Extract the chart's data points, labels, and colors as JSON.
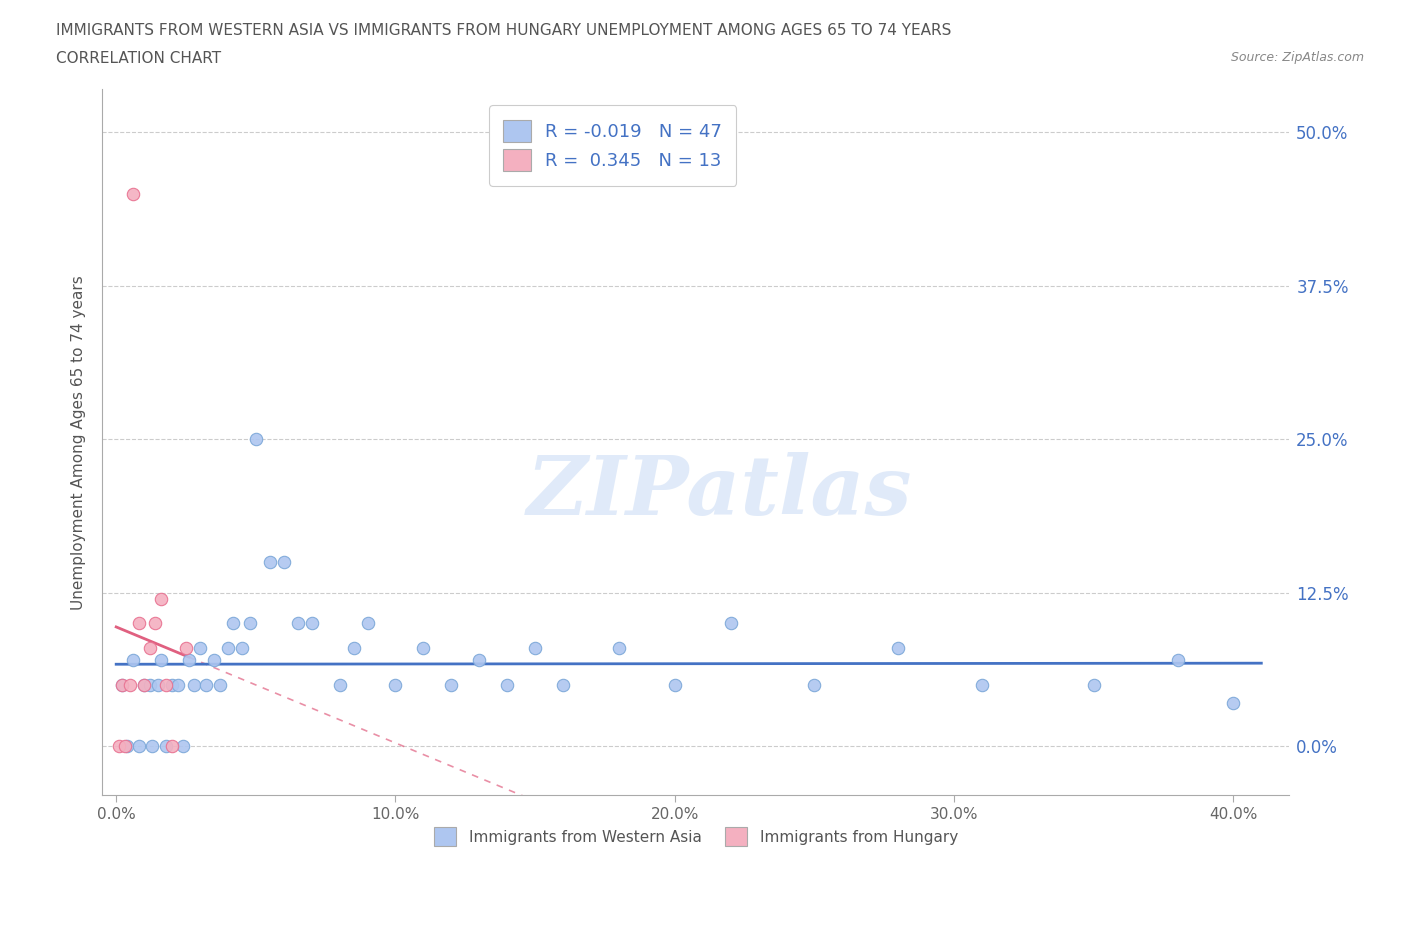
{
  "title_line1": "IMMIGRANTS FROM WESTERN ASIA VS IMMIGRANTS FROM HUNGARY UNEMPLOYMENT AMONG AGES 65 TO 74 YEARS",
  "title_line2": "CORRELATION CHART",
  "source_text": "Source: ZipAtlas.com",
  "ylabel": "Unemployment Among Ages 65 to 74 years",
  "x_ticks": [
    "0.0%",
    "10.0%",
    "20.0%",
    "30.0%",
    "40.0%"
  ],
  "x_tick_vals": [
    0.0,
    0.1,
    0.2,
    0.3,
    0.4
  ],
  "y_ticks": [
    "0.0%",
    "12.5%",
    "25.0%",
    "37.5%",
    "50.0%"
  ],
  "y_tick_vals": [
    0.0,
    0.125,
    0.25,
    0.375,
    0.5
  ],
  "xlim": [
    -0.005,
    0.42
  ],
  "ylim": [
    -0.04,
    0.535
  ],
  "color_western_asia": "#aec6f0",
  "color_hungary": "#f4b0c0",
  "edge_color_western_asia": "#7ba7d8",
  "edge_color_hungary": "#e87090",
  "line_color_western_asia": "#4472c4",
  "line_color_hungary": "#e06080",
  "watermark_text": "ZIPatlas",
  "background_color": "#ffffff",
  "grid_color": "#cccccc",
  "wa_x": [
    0.002,
    0.004,
    0.006,
    0.008,
    0.01,
    0.012,
    0.013,
    0.015,
    0.016,
    0.018,
    0.02,
    0.022,
    0.024,
    0.026,
    0.028,
    0.03,
    0.032,
    0.035,
    0.037,
    0.04,
    0.042,
    0.045,
    0.048,
    0.05,
    0.055,
    0.06,
    0.065,
    0.07,
    0.08,
    0.085,
    0.09,
    0.1,
    0.11,
    0.12,
    0.13,
    0.14,
    0.15,
    0.16,
    0.18,
    0.2,
    0.22,
    0.25,
    0.28,
    0.31,
    0.35,
    0.38,
    0.4
  ],
  "wa_y": [
    0.05,
    0.0,
    0.07,
    0.0,
    0.05,
    0.05,
    0.0,
    0.05,
    0.07,
    0.0,
    0.05,
    0.05,
    0.0,
    0.07,
    0.05,
    0.08,
    0.05,
    0.07,
    0.05,
    0.08,
    0.1,
    0.08,
    0.1,
    0.25,
    0.15,
    0.15,
    0.1,
    0.1,
    0.05,
    0.08,
    0.1,
    0.05,
    0.08,
    0.05,
    0.07,
    0.05,
    0.08,
    0.05,
    0.08,
    0.05,
    0.1,
    0.05,
    0.08,
    0.05,
    0.05,
    0.07,
    0.035
  ],
  "hu_x": [
    0.001,
    0.002,
    0.003,
    0.005,
    0.006,
    0.008,
    0.01,
    0.012,
    0.014,
    0.016,
    0.018,
    0.02,
    0.025
  ],
  "hu_y": [
    0.0,
    0.05,
    0.0,
    0.05,
    0.45,
    0.1,
    0.05,
    0.08,
    0.1,
    0.12,
    0.05,
    0.0,
    0.08
  ],
  "legend_label_wa": "R = -0.019   N = 47",
  "legend_label_hu": "R =  0.345   N = 13",
  "legend_items": [
    {
      "label": "Immigrants from Western Asia",
      "color": "#aec6f0"
    },
    {
      "label": "Immigrants from Hungary",
      "color": "#f4b0c0"
    }
  ]
}
